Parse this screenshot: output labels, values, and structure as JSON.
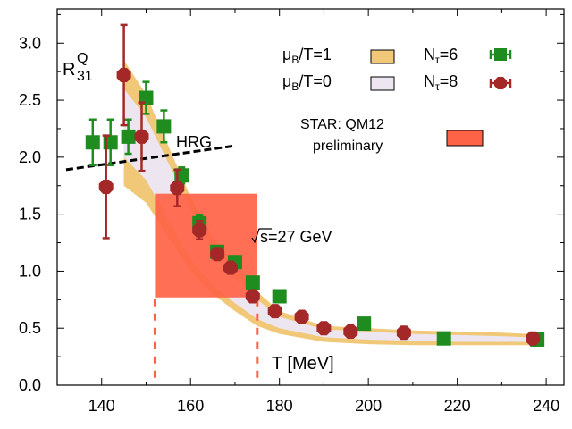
{
  "chart_data": {
    "type": "scatter",
    "xlabel": "T [MeV]",
    "ylabel": "R",
    "ylabel_sup": "Q",
    "ylabel_sub": "31",
    "xlim": [
      130,
      244
    ],
    "ylim": [
      0,
      3.3
    ],
    "x_ticks": [
      140,
      160,
      180,
      200,
      220,
      240
    ],
    "y_ticks": [
      0.0,
      0.5,
      1.0,
      1.5,
      2.0,
      2.5,
      3.0
    ],
    "y_tick_labels": [
      "0.0",
      "0.5",
      "1.0",
      "1.5",
      "2.0",
      "2.5",
      "3.0"
    ],
    "legend": [
      {
        "mu": "μ",
        "sub": "B",
        "rest": "/T=1"
      },
      {
        "mu": "μ",
        "sub": "B",
        "rest": "/T=0"
      },
      {
        "n": "N",
        "sub": "τ",
        "rest": "=6"
      },
      {
        "n": "N",
        "sub": "τ",
        "rest": "=8"
      }
    ],
    "star_label_line1": "STAR: QM12",
    "star_label_line2": "preliminary",
    "energy_label": "s=27 GeV",
    "hrg_label": "HRG",
    "colors": {
      "band_mu1": "#f0c878",
      "band_mu0": "#ede6f0",
      "nt6": "#1e8c1e",
      "nt8": "#a52828",
      "star": "#ff6347"
    },
    "band_mu1": {
      "x": [
        145,
        150,
        155,
        160,
        165,
        170,
        175,
        180,
        190,
        200,
        210,
        220,
        230,
        236
      ],
      "upper": [
        2.85,
        2.55,
        2.1,
        1.65,
        1.3,
        1.05,
        0.82,
        0.65,
        0.52,
        0.5,
        0.48,
        0.47,
        0.46,
        0.45
      ],
      "lower": [
        1.75,
        1.6,
        1.3,
        1.0,
        0.8,
        0.65,
        0.52,
        0.45,
        0.38,
        0.36,
        0.35,
        0.35,
        0.35,
        0.35
      ]
    },
    "band_mu0": {
      "x": [
        145,
        150,
        155,
        160,
        165,
        170,
        175,
        180,
        190,
        200,
        210,
        220,
        230,
        236
      ],
      "upper": [
        2.6,
        2.35,
        1.95,
        1.55,
        1.2,
        0.95,
        0.75,
        0.6,
        0.49,
        0.47,
        0.45,
        0.44,
        0.43,
        0.42
      ],
      "lower": [
        2.0,
        1.8,
        1.45,
        1.1,
        0.88,
        0.72,
        0.58,
        0.5,
        0.42,
        0.4,
        0.39,
        0.38,
        0.38,
        0.38
      ]
    },
    "hrg": {
      "x": [
        132,
        170
      ],
      "y": [
        1.89,
        2.1
      ]
    },
    "star_box": {
      "x": [
        152,
        175
      ],
      "y": [
        0.77,
        1.68
      ]
    },
    "star_dashes": [
      152,
      175
    ],
    "series": [
      {
        "name": "Nτ=6",
        "points": [
          {
            "x": 138,
            "y": 2.13,
            "err": 0.2
          },
          {
            "x": 142,
            "y": 2.13,
            "err": 0.2
          },
          {
            "x": 146,
            "y": 2.18,
            "err": 0.15
          },
          {
            "x": 150,
            "y": 2.52,
            "err": 0.14
          },
          {
            "x": 154,
            "y": 2.27,
            "err": 0.14
          },
          {
            "x": 158,
            "y": 1.84,
            "err": 0.07
          },
          {
            "x": 162,
            "y": 1.42,
            "err": 0.07
          },
          {
            "x": 166,
            "y": 1.17,
            "err": 0.05
          },
          {
            "x": 170,
            "y": 1.08,
            "err": 0.05
          },
          {
            "x": 174,
            "y": 0.9,
            "err": 0.04
          },
          {
            "x": 180,
            "y": 0.78,
            "err": 0.05
          },
          {
            "x": 199,
            "y": 0.54,
            "err": 0.03
          },
          {
            "x": 217,
            "y": 0.41,
            "err": 0.02
          },
          {
            "x": 238,
            "y": 0.4,
            "err": 0.02
          }
        ]
      },
      {
        "name": "Nτ=8",
        "points": [
          {
            "x": 141,
            "y": 1.74,
            "err": 0.45
          },
          {
            "x": 145,
            "y": 2.72,
            "err": 0.44
          },
          {
            "x": 149,
            "y": 2.18,
            "err": 0.3
          },
          {
            "x": 157,
            "y": 1.73,
            "err": 0.16
          },
          {
            "x": 162,
            "y": 1.36,
            "err": 0.08
          },
          {
            "x": 166,
            "y": 1.15,
            "err": 0.05
          },
          {
            "x": 169,
            "y": 1.03,
            "err": 0.04
          },
          {
            "x": 174,
            "y": 0.78,
            "err": 0.03
          },
          {
            "x": 179,
            "y": 0.65,
            "err": 0.03
          },
          {
            "x": 185,
            "y": 0.6,
            "err": 0.02
          },
          {
            "x": 190,
            "y": 0.5,
            "err": 0.02
          },
          {
            "x": 196,
            "y": 0.47,
            "err": 0.02
          },
          {
            "x": 208,
            "y": 0.46,
            "err": 0.02
          },
          {
            "x": 237,
            "y": 0.41,
            "err": 0.02
          }
        ]
      }
    ]
  }
}
